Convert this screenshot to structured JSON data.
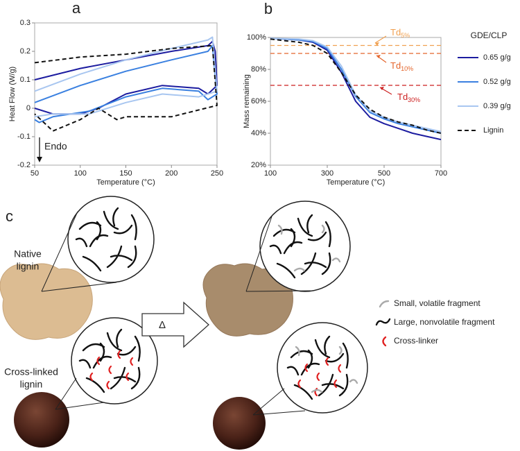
{
  "chart_data": [
    {
      "type": "line",
      "panel": "a",
      "xlabel": "Temperature (°C)",
      "ylabel": "Heat Flow (W/g)",
      "xlim": [
        50,
        250
      ],
      "xticks": [
        50,
        100,
        150,
        200,
        250
      ],
      "ylim": [
        -0.2,
        0.3
      ],
      "yticks": [
        -0.2,
        -0.1,
        0,
        0.1,
        0.2,
        0.3
      ],
      "annotation": "Endo",
      "series": [
        {
          "color": "#1c1ca0",
          "linestyle": "solid",
          "x": [
            50,
            100,
            150,
            200,
            240,
            245,
            248,
            250,
            240,
            230,
            190,
            150,
            120,
            100,
            70,
            50
          ],
          "values": [
            0.1,
            0.14,
            0.17,
            0.2,
            0.22,
            0.235,
            0.2,
            0.08,
            0.05,
            0.07,
            0.08,
            0.05,
            0.0,
            -0.02,
            -0.02,
            0.0
          ]
        },
        {
          "color": "#3a80e0",
          "linestyle": "solid",
          "x": [
            50,
            100,
            150,
            200,
            240,
            245,
            250,
            240,
            230,
            190,
            150,
            110,
            70,
            55,
            50
          ],
          "values": [
            0.02,
            0.08,
            0.13,
            0.17,
            0.2,
            0.22,
            0.05,
            0.03,
            0.06,
            0.07,
            0.04,
            -0.01,
            -0.03,
            -0.05,
            -0.04
          ]
        },
        {
          "color": "#a8c6f0",
          "linestyle": "solid",
          "x": [
            50,
            100,
            150,
            200,
            240,
            245,
            250,
            230,
            190,
            150,
            110,
            70,
            50
          ],
          "values": [
            0.06,
            0.12,
            0.17,
            0.21,
            0.24,
            0.25,
            0.06,
            0.04,
            0.05,
            0.02,
            -0.02,
            -0.02,
            -0.03
          ]
        },
        {
          "color": "#111111",
          "linestyle": "dashed",
          "x": [
            50,
            100,
            150,
            200,
            245,
            250,
            200,
            150,
            140,
            120,
            100,
            70,
            50
          ],
          "values": [
            0.16,
            0.18,
            0.19,
            0.21,
            0.22,
            0.01,
            -0.03,
            -0.03,
            -0.04,
            0.0,
            -0.04,
            -0.08,
            -0.02
          ]
        }
      ]
    },
    {
      "type": "line",
      "panel": "b",
      "xlabel": "Temperature (°C)",
      "ylabel": "Mass remaining",
      "xlim": [
        100,
        700
      ],
      "xticks": [
        100,
        300,
        500,
        700
      ],
      "ylim": [
        20,
        100
      ],
      "yticks": [
        {
          "value": 20,
          "label": "20%"
        },
        {
          "value": 40,
          "label": "40%"
        },
        {
          "value": 60,
          "label": "60%"
        },
        {
          "value": 80,
          "label": "80%"
        },
        {
          "value": 100,
          "label": "100%"
        }
      ],
      "x": [
        100,
        150,
        200,
        250,
        300,
        350,
        400,
        450,
        500,
        550,
        600,
        650,
        700
      ],
      "legend_title": "GDE/CLP",
      "series": [
        {
          "name": "0.65 g/g",
          "color": "#1c1ca0",
          "linestyle": "solid",
          "values": [
            99.5,
            99,
            98.5,
            97,
            92,
            78,
            60,
            50,
            46,
            43,
            40,
            38,
            36
          ]
        },
        {
          "name": "0.52 g/g",
          "color": "#3a80e0",
          "linestyle": "solid",
          "values": [
            99.5,
            99,
            98.5,
            97.5,
            93,
            80,
            63,
            53,
            49,
            46,
            44,
            42,
            40
          ]
        },
        {
          "name": "0.39 g/g",
          "color": "#a8c6f0",
          "linestyle": "solid",
          "values": [
            99.5,
            99.2,
            99,
            98,
            94,
            82,
            64,
            54,
            50,
            47,
            45,
            43,
            41
          ]
        },
        {
          "name": "Lignin",
          "color": "#111111",
          "linestyle": "dashed",
          "values": [
            99,
            98,
            97,
            95,
            90,
            78,
            64,
            55,
            50,
            47,
            45,
            42,
            40
          ]
        }
      ],
      "hlines": [
        {
          "y": 95,
          "label": "Td",
          "sub": "5%",
          "color": "#f0a050"
        },
        {
          "y": 90,
          "label": "Td",
          "sub": "10%",
          "color": "#e4642a"
        },
        {
          "y": 70,
          "label": "Td",
          "sub": "30%",
          "color": "#cc1f1f"
        }
      ]
    }
  ],
  "panel_c": {
    "panel": "c",
    "native_label": [
      "Native",
      "lignin"
    ],
    "crosslinked_label": [
      "Cross-linked",
      "lignin"
    ],
    "arrow_label": "Δ",
    "legend": [
      "Small, volatile fragment",
      "Large, nonvolatile fragment",
      "Cross-linker"
    ]
  }
}
